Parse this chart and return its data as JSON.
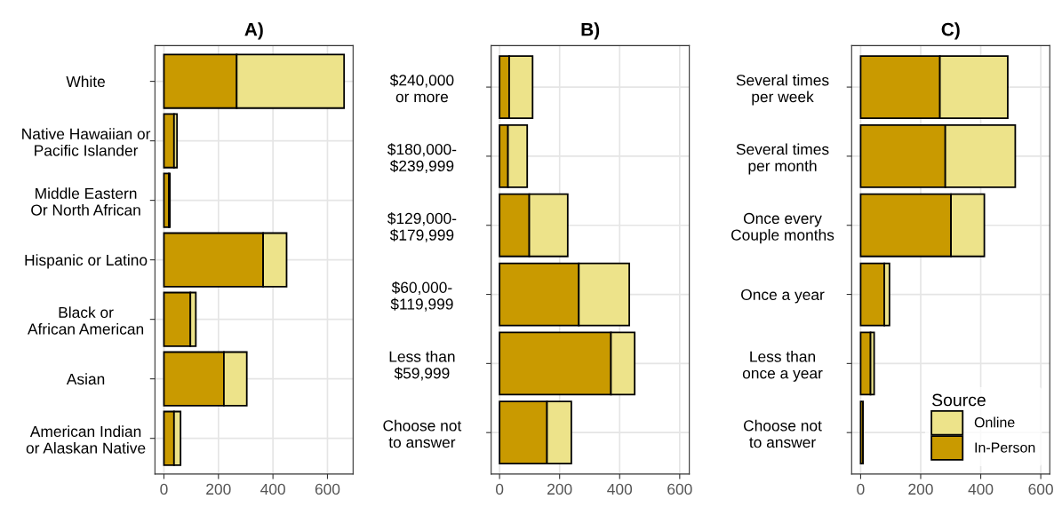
{
  "chart_data": [
    {
      "type": "bar",
      "title": "A)",
      "orientation": "horizontal",
      "stacked": true,
      "grid": true,
      "legend": false,
      "categories": [
        "White",
        "Native Hawaiian or\nPacific Islander",
        "Middle Eastern\nOr North African",
        "Hispanic or Latino",
        "Black or\nAfrican American",
        "Asian",
        "American Indian\nor Alaskan Native"
      ],
      "series": [
        {
          "color": "#c99a00",
          "values": [
            267,
            37,
            18,
            364,
            97,
            220,
            37
          ]
        },
        {
          "color": "#ede38a",
          "values": [
            394,
            11,
            4,
            86,
            20,
            84,
            24
          ]
        }
      ],
      "xlim": [
        -33,
        694
      ],
      "xticks": [
        0,
        200,
        400,
        600
      ]
    },
    {
      "type": "bar",
      "title": "B)",
      "orientation": "horizontal",
      "stacked": true,
      "grid": true,
      "legend": false,
      "categories": [
        "$240,000\nor more",
        "$180,000-\n$239,999",
        "$129,000-\n$179,999",
        "$60,000-\n$119,999",
        "Less than\n$59,999",
        "Choose not\nto answer"
      ],
      "series": [
        {
          "color": "#c99a00",
          "values": [
            32,
            28,
            99,
            264,
            371,
            158
          ]
        },
        {
          "color": "#ede38a",
          "values": [
            78,
            64,
            128,
            168,
            79,
            81
          ]
        }
      ],
      "xlim": [
        -28,
        632
      ],
      "xticks": [
        0,
        200,
        400,
        600
      ]
    },
    {
      "type": "bar",
      "title": "C)",
      "orientation": "horizontal",
      "stacked": true,
      "grid": true,
      "legend": "bottom right",
      "legend_title": "Source",
      "categories": [
        "Several times\nper week",
        "Several times\nper month",
        "Once every\nCouple months",
        "Once a year",
        "Less than\nonce a year",
        "Choose not\nto answer"
      ],
      "series": [
        {
          "name": "In-Person",
          "color": "#c99a00",
          "values": [
            264,
            282,
            301,
            79,
            33,
            8
          ]
        },
        {
          "name": "Online",
          "color": "#ede38a",
          "values": [
            226,
            233,
            111,
            17,
            12,
            null
          ]
        }
      ],
      "xlim": [
        -30,
        630
      ],
      "xticks": [
        0,
        200,
        400,
        600
      ]
    }
  ]
}
